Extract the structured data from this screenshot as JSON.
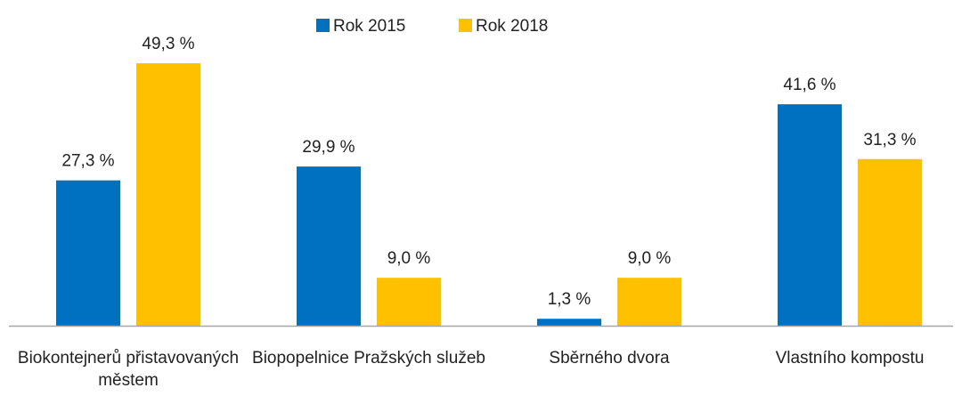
{
  "chart_data": {
    "type": "bar",
    "categories": [
      "Biokontejnerů přistavovaných městem",
      "Biopopelnice Pražských služeb",
      "Sběrného dvora",
      "Vlastního kompostu"
    ],
    "series": [
      {
        "name": "Rok 2015",
        "color": "#0070c0",
        "values": [
          27.3,
          29.9,
          1.3,
          41.6
        ],
        "value_labels": [
          "27,3 %",
          "29,9 %",
          "1,3 %",
          "41,6 %"
        ]
      },
      {
        "name": "Rok 2018",
        "color": "#ffc000",
        "values": [
          49.3,
          9.0,
          9.0,
          31.3
        ],
        "value_labels": [
          "49,3 %",
          "9,0 %",
          "9,0 %",
          "31,3 %"
        ]
      }
    ],
    "ylim": [
      0,
      55
    ],
    "legend": "top"
  }
}
